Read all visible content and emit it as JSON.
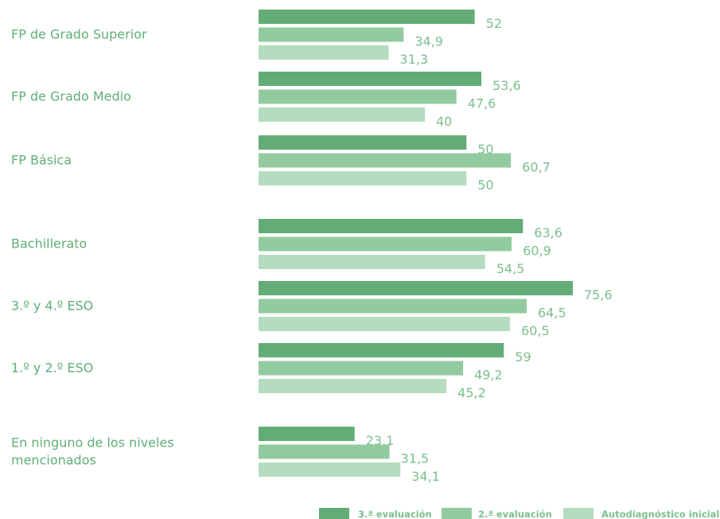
{
  "chart_data": {
    "type": "bar",
    "orientation": "horizontal",
    "categories": [
      "FP de Grado Superior",
      "FP de Grado Medio",
      "FP Básica",
      "Bachillerato",
      "3.º y 4.º ESO",
      "1.º y 2.º ESO",
      "En ninguno de los niveles mencionados"
    ],
    "series": [
      {
        "name": "3.ª evaluación",
        "color": "#63ac78",
        "values": [
          52,
          53.6,
          50,
          63.6,
          75.6,
          59,
          23.1
        ],
        "labels": [
          "52",
          "53,6",
          "50",
          "63,6",
          "75,6",
          "59",
          "23,1"
        ]
      },
      {
        "name": "2.ª evaluación",
        "color": "#93cba0",
        "values": [
          34.9,
          47.6,
          60.7,
          60.9,
          64.5,
          49.2,
          31.5
        ],
        "labels": [
          "34,9",
          "47,6",
          "60,7",
          "60,9",
          "64,5",
          "49,2",
          "31,5"
        ]
      },
      {
        "name": "Autodiagnóstico inicial",
        "color": "#b5dcbe",
        "values": [
          31.3,
          40,
          50,
          54.5,
          60.5,
          45.2,
          34.1
        ],
        "labels": [
          "31,3",
          "40",
          "50",
          "54,5",
          "60,5",
          "45,2",
          "34,1"
        ]
      }
    ],
    "xlim": [
      0,
      100
    ],
    "grid": false,
    "legend": "bottom-right",
    "title": "",
    "xlabel": "",
    "ylabel": ""
  }
}
